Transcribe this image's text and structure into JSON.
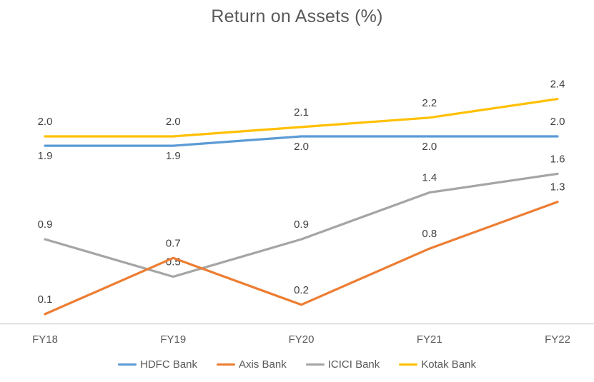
{
  "chart_data": {
    "type": "line",
    "title": "Return on Assets (%)",
    "categories": [
      "FY18",
      "FY19",
      "FY20",
      "FY21",
      "FY22"
    ],
    "series": [
      {
        "name": "HDFC Bank",
        "color": "#5B9BD5",
        "values": [
          1.9,
          1.9,
          2.0,
          2.0,
          2.0
        ],
        "label_positions": [
          "below",
          "below",
          "below",
          "below",
          "above"
        ]
      },
      {
        "name": "Axis Bank",
        "color": "#ED7D31",
        "values": [
          0.1,
          0.7,
          0.2,
          0.8,
          1.3
        ],
        "label_positions": [
          "above",
          "above",
          "above",
          "above",
          "above"
        ]
      },
      {
        "name": "ICICI Bank",
        "color": "#A5A5A5",
        "values": [
          0.9,
          0.5,
          0.9,
          1.4,
          1.6
        ],
        "label_positions": [
          "above",
          "above",
          "above",
          "above",
          "above"
        ]
      },
      {
        "name": "Kotak Bank",
        "color": "#FFC000",
        "values": [
          2.0,
          2.0,
          2.1,
          2.2,
          2.4
        ],
        "label_positions": [
          "above",
          "above",
          "above",
          "above",
          "above"
        ]
      }
    ],
    "xlabel": "",
    "ylabel": "",
    "ylim": [
      0,
      2.6
    ],
    "grid": false,
    "y_axis_visible": false,
    "x_axis_visible": true,
    "data_labels": true,
    "label_decimals": 1,
    "legend_position": "bottom",
    "colors": {
      "axis_line": "#D9D9D9",
      "title_text": "#595959",
      "tick_text": "#595959",
      "data_label_text": "#404040",
      "background": "#FFFFFF"
    }
  }
}
